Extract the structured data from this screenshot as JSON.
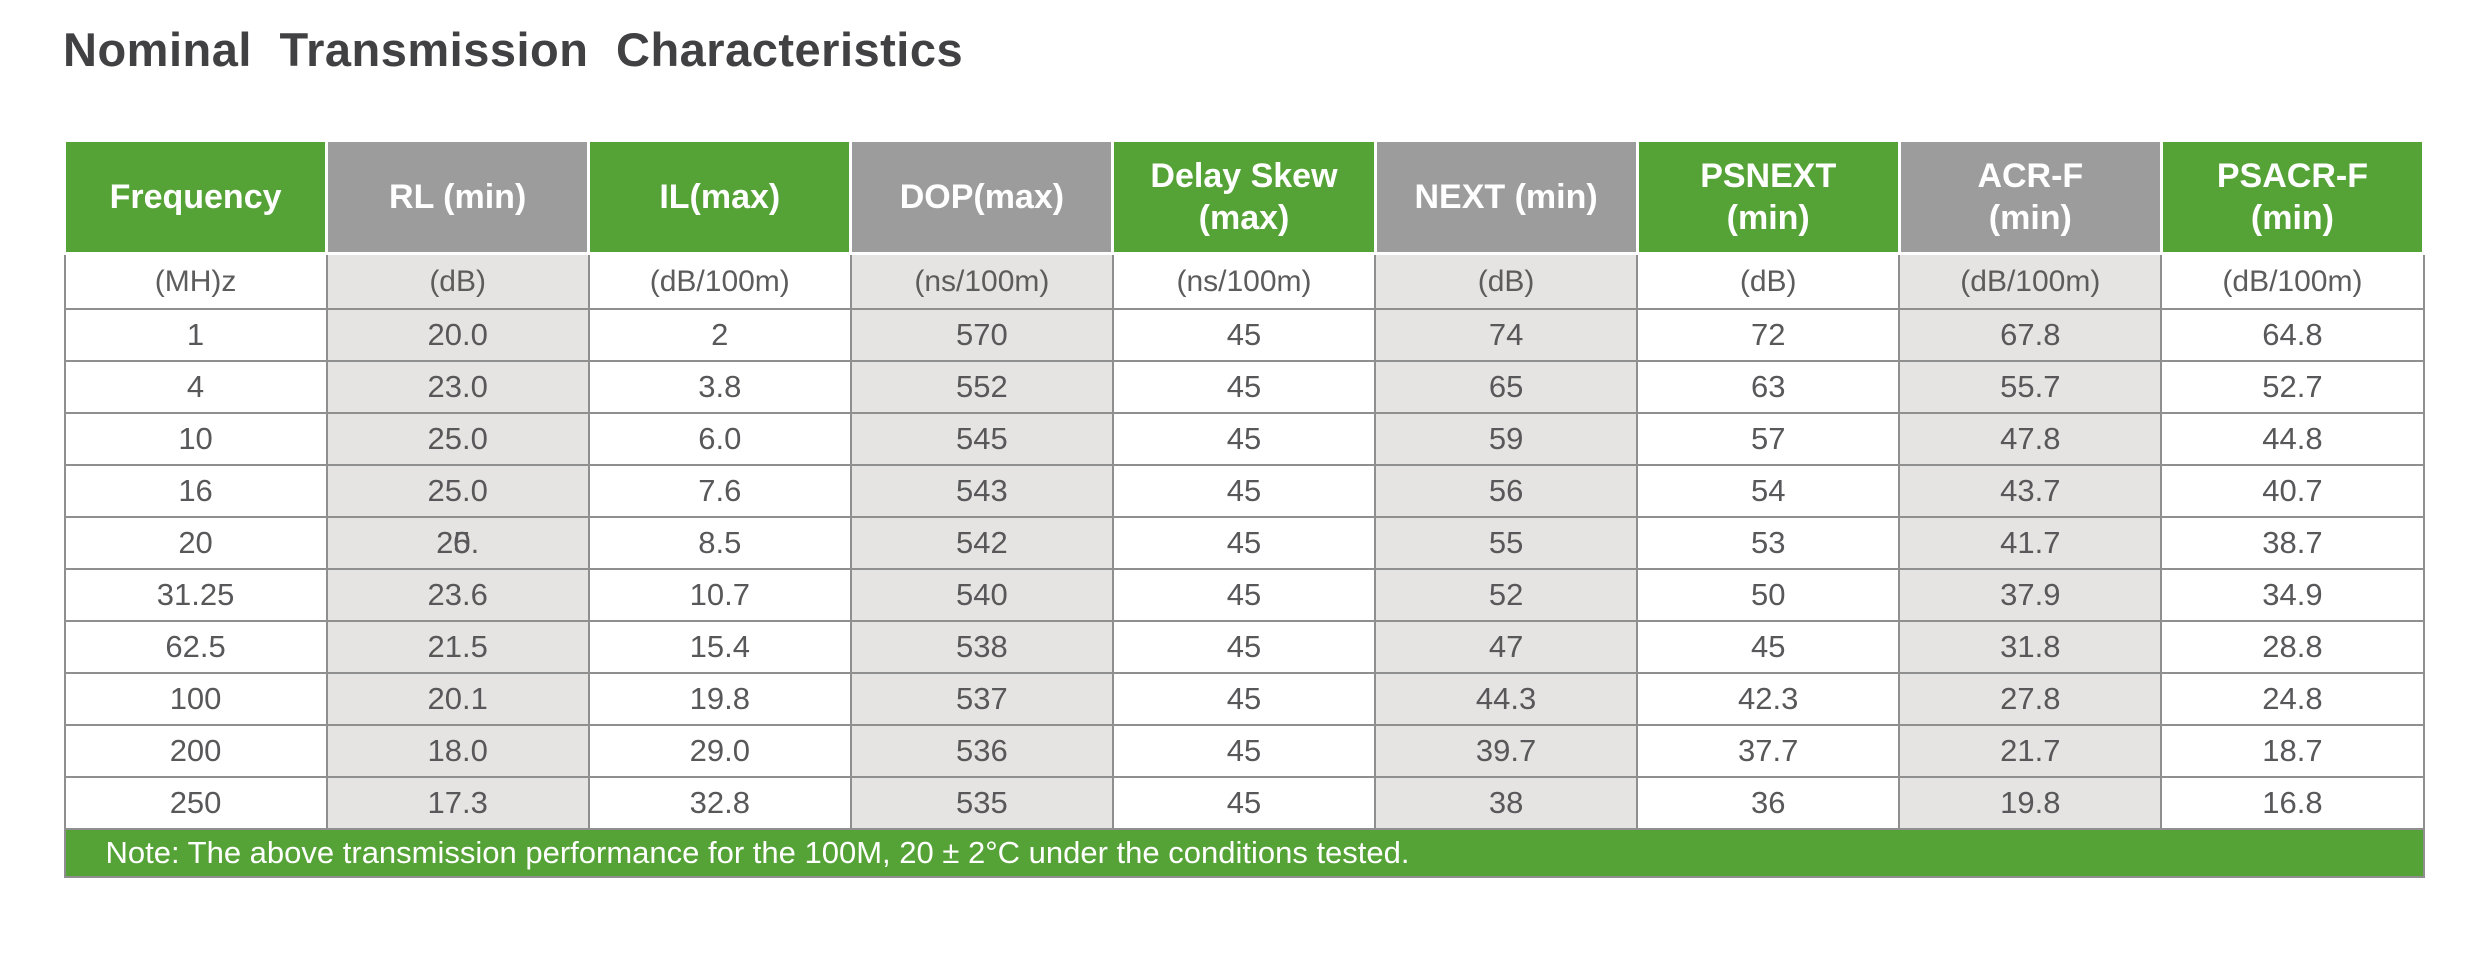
{
  "title": "Nominal Transmission Characteristics",
  "note": "Note: The above transmission performance for the 100M, 20 ± 2°C under the conditions tested.",
  "colors": {
    "green": "#55a336",
    "gray_header": "#9c9c9c",
    "gray_light": "#e5e4e2",
    "border": "#8f8f8f",
    "title_text": "#414042",
    "body_text": "#58585a",
    "unit_text": "#5c5c5c",
    "header_text": "#ffffff"
  },
  "chart_data": {
    "type": "table",
    "title": "Nominal Transmission Characteristics",
    "columns": [
      {
        "id": "frequency",
        "label": "Frequency",
        "unit": "(MH)z",
        "header": "green"
      },
      {
        "id": "rl-min",
        "label": "RL (min)",
        "unit": "(dB)",
        "header": "gray"
      },
      {
        "id": "il-max",
        "label": "IL(max)",
        "unit": "(dB/100m)",
        "header": "green"
      },
      {
        "id": "dop-max",
        "label": "DOP(max)",
        "unit": "(ns/100m)",
        "header": "gray"
      },
      {
        "id": "delay-skew-max",
        "label": "Delay Skew\n(max)",
        "unit": "(ns/100m)",
        "header": "green"
      },
      {
        "id": "next-min",
        "label": "NEXT (min)",
        "unit": "(dB)",
        "header": "gray"
      },
      {
        "id": "psnext-min",
        "label": "PSNEXT\n(min)",
        "unit": "(dB)",
        "header": "green"
      },
      {
        "id": "acr-f-min",
        "label": "ACR-F\n(min)",
        "unit": "(dB/100m)",
        "header": "gray"
      },
      {
        "id": "psacr-f-min",
        "label": "PSACR-F\n(min)",
        "unit": "(dB/100m)",
        "header": "green"
      }
    ],
    "rows": [
      [
        "1",
        "20.0",
        "2",
        "570",
        "45",
        "74",
        "72",
        "67.8",
        "64.8"
      ],
      [
        "4",
        "23.0",
        "3.8",
        "552",
        "45",
        "65",
        "63",
        "55.7",
        "52.7"
      ],
      [
        "10",
        "25.0",
        "6.0",
        "545",
        "45",
        "59",
        "57",
        "47.8",
        "44.8"
      ],
      [
        "16",
        "25.0",
        "7.6",
        "543",
        "45",
        "56",
        "54",
        "43.7",
        "40.7"
      ],
      [
        "20",
        {
          "text": "25.",
          "misprint": {
            "base": "2",
            "stack": [
              "0",
              "5"
            ],
            "tail": "."
          }
        },
        "8.5",
        "542",
        "45",
        "55",
        "53",
        "41.7",
        "38.7"
      ],
      [
        "31.25",
        "23.6",
        "10.7",
        "540",
        "45",
        "52",
        "50",
        "37.9",
        "34.9"
      ],
      [
        "62.5",
        "21.5",
        "15.4",
        "538",
        "45",
        "47",
        "45",
        "31.8",
        "28.8"
      ],
      [
        "100",
        "20.1",
        "19.8",
        "537",
        "45",
        "44.3",
        "42.3",
        "27.8",
        "24.8"
      ],
      [
        "200",
        "18.0",
        "29.0",
        "536",
        "45",
        "39.7",
        "37.7",
        "21.7",
        "18.7"
      ],
      [
        "250",
        "17.3",
        "32.8",
        "535",
        "45",
        "38",
        "36",
        "19.8",
        "16.8"
      ]
    ],
    "note": "Note: The above transmission performance for the 100M, 20 ± 2°C under the conditions tested.",
    "layout": {
      "header_row_colors_alternate": [
        "green",
        "gray"
      ],
      "note_position": "bottom",
      "grid": true
    }
  }
}
